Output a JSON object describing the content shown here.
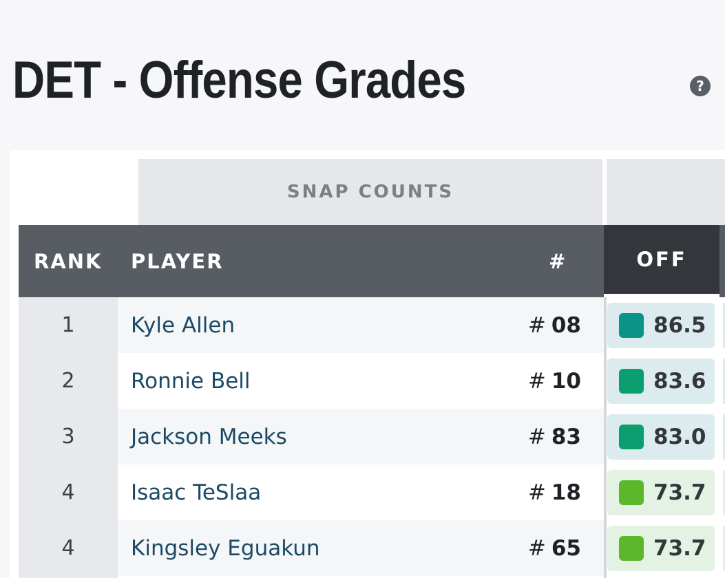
{
  "page": {
    "title": "DET - Offense Grades",
    "help_icon": "question-circle-icon"
  },
  "table": {
    "group_header": "SNAP COUNTS",
    "columns": {
      "rank": "RANK",
      "player": "PLAYER",
      "number": "#",
      "off": "OFF"
    },
    "rows": [
      {
        "rank": "1",
        "player": "Kyle Allen",
        "hash": "#",
        "number": "08",
        "grade": "86.5",
        "swatch": "#0a9488",
        "cell_bg": "#dcecee"
      },
      {
        "rank": "2",
        "player": "Ronnie Bell",
        "hash": "#",
        "number": "10",
        "grade": "83.6",
        "swatch": "#0b9e6e",
        "cell_bg": "#dcecee"
      },
      {
        "rank": "3",
        "player": "Jackson Meeks",
        "hash": "#",
        "number": "83",
        "grade": "83.0",
        "swatch": "#0b9e6e",
        "cell_bg": "#dcecee"
      },
      {
        "rank": "4",
        "player": "Isaac TeSlaa",
        "hash": "#",
        "number": "18",
        "grade": "73.7",
        "swatch": "#5cb82a",
        "cell_bg": "#e3f2e3"
      },
      {
        "rank": "4",
        "player": "Kingsley Eguakun",
        "hash": "#",
        "number": "65",
        "grade": "73.7",
        "swatch": "#5cb82a",
        "cell_bg": "#e3f2e3"
      }
    ]
  }
}
